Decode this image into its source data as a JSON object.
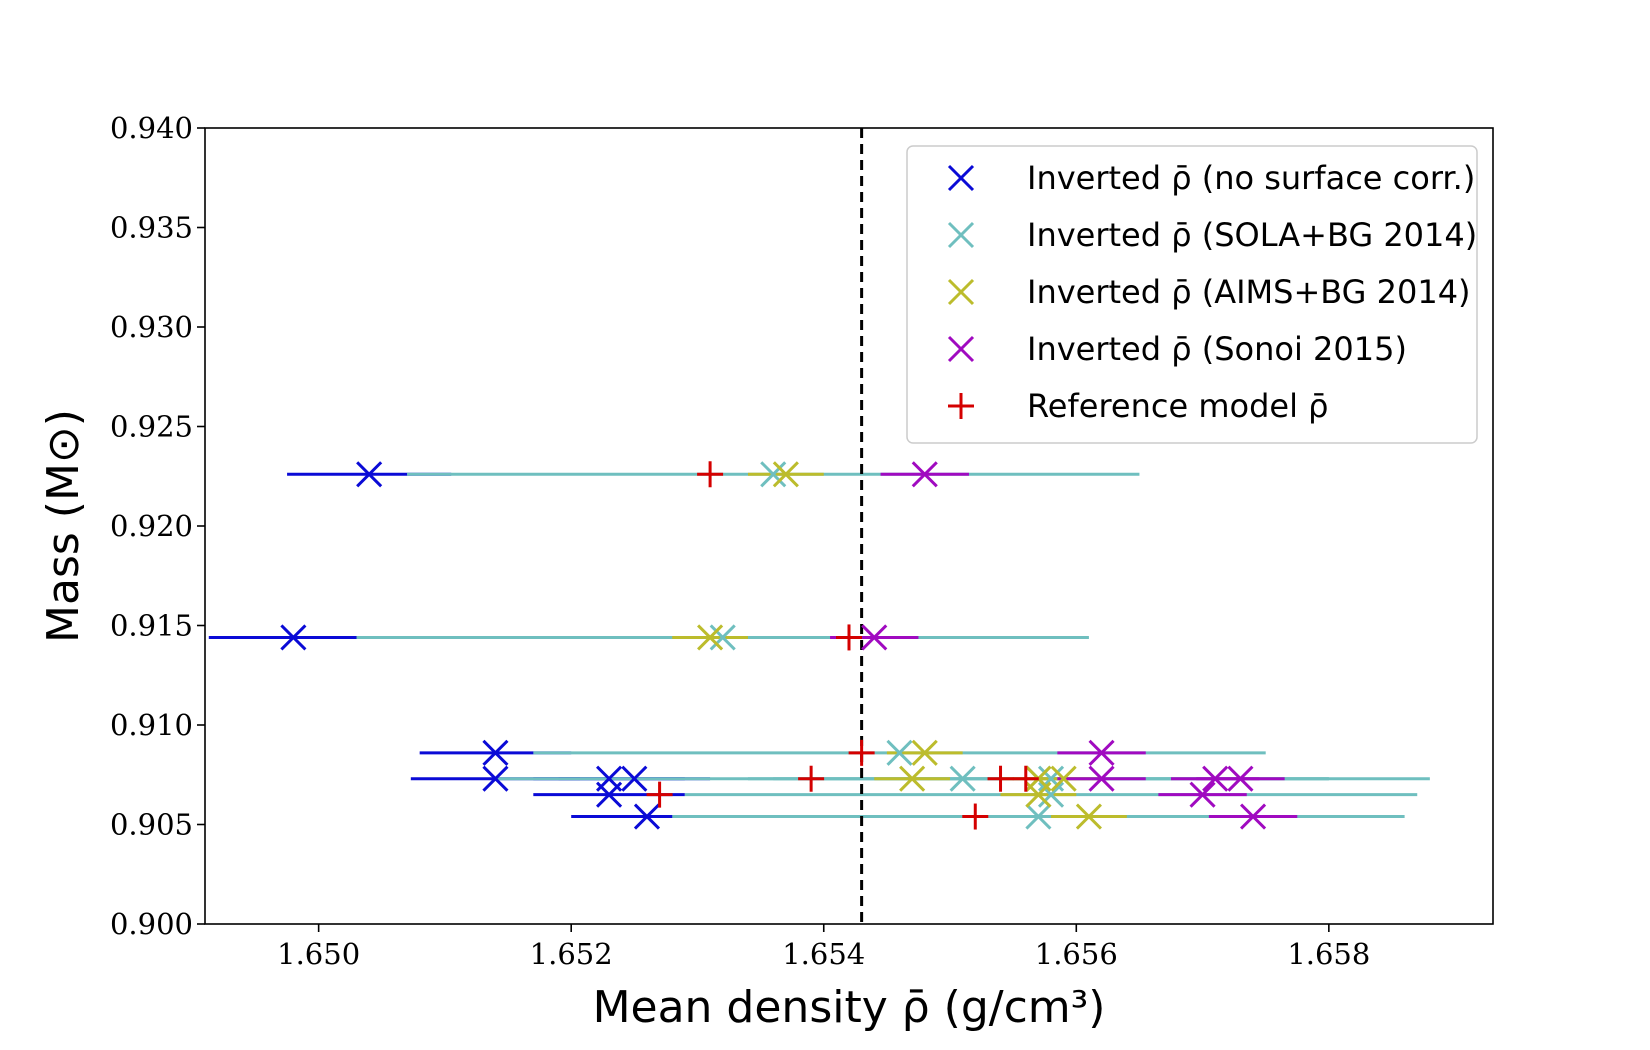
{
  "chart_data": {
    "type": "scatter",
    "xlabel": "Mean density ρ̄ (g/cm³)",
    "ylabel": "Mass (M⊙)",
    "xlim": [
      1.6491,
      1.6593
    ],
    "ylim": [
      0.9,
      0.94
    ],
    "xticks": [
      "1.650",
      "1.652",
      "1.654",
      "1.656",
      "1.658"
    ],
    "yticks": [
      "0.900",
      "0.905",
      "0.910",
      "0.915",
      "0.920",
      "0.925",
      "0.930",
      "0.935",
      "0.940"
    ],
    "grid": false,
    "legend_position": "top-right",
    "vline": {
      "x": 1.6543,
      "style": "dashed",
      "color": "#000000"
    },
    "series": [
      {
        "name": "Inverted ρ̄ (no surface corr.)",
        "marker": "x",
        "color": "#0a0ad6",
        "points": [
          {
            "x": 1.6504,
            "y": 0.9226,
            "xerr": 0.00065
          },
          {
            "x": 1.6498,
            "y": 0.9144,
            "xerr": 0.00067
          },
          {
            "x": 1.6514,
            "y": 0.9086,
            "xerr": 0.0006
          },
          {
            "x": 1.6514,
            "y": 0.9073,
            "xerr": 0.00067
          },
          {
            "x": 1.6523,
            "y": 0.9073,
            "xerr": 0.0006
          },
          {
            "x": 1.6525,
            "y": 0.9073,
            "xerr": 0.0006
          },
          {
            "x": 1.6523,
            "y": 0.9065,
            "xerr": 0.0006
          },
          {
            "x": 1.6526,
            "y": 0.9054,
            "xerr": 0.0006
          }
        ]
      },
      {
        "name": "Inverted ρ̄ (SOLA+BG 2014)",
        "marker": "x",
        "color": "#6fbfbf",
        "points": [
          {
            "x": 1.6536,
            "y": 0.9226,
            "xerr": 0.0029
          },
          {
            "x": 1.6532,
            "y": 0.9144,
            "xerr": 0.0029
          },
          {
            "x": 1.6546,
            "y": 0.9086,
            "xerr": 0.0029
          },
          {
            "x": 1.6551,
            "y": 0.9073,
            "xerr": 0.0037
          },
          {
            "x": 1.6557,
            "y": 0.9073,
            "xerr": 0.0023
          },
          {
            "x": 1.6558,
            "y": 0.9073,
            "xerr": 0.0022
          },
          {
            "x": 1.6558,
            "y": 0.9065,
            "xerr": 0.0029
          },
          {
            "x": 1.6557,
            "y": 0.9054,
            "xerr": 0.0029
          }
        ]
      },
      {
        "name": "Inverted ρ̄ (AIMS+BG 2014)",
        "marker": "x",
        "color": "#bcbc2c",
        "points": [
          {
            "x": 1.6537,
            "y": 0.9226,
            "xerr": 0.0003
          },
          {
            "x": 1.6531,
            "y": 0.9144,
            "xerr": 0.0003
          },
          {
            "x": 1.6548,
            "y": 0.9086,
            "xerr": 0.0003
          },
          {
            "x": 1.6547,
            "y": 0.9073,
            "xerr": 0.0003
          },
          {
            "x": 1.6559,
            "y": 0.9073,
            "xerr": 0.0003
          },
          {
            "x": 1.6557,
            "y": 0.9073,
            "xerr": 0.0003
          },
          {
            "x": 1.6557,
            "y": 0.9065,
            "xerr": 0.0003
          },
          {
            "x": 1.6561,
            "y": 0.9054,
            "xerr": 0.0003
          }
        ]
      },
      {
        "name": "Inverted ρ̄ (Sonoi 2015)",
        "marker": "x",
        "color": "#a00ac0",
        "points": [
          {
            "x": 1.6548,
            "y": 0.9226,
            "xerr": 0.00035
          },
          {
            "x": 1.6544,
            "y": 0.9144,
            "xerr": 0.00035
          },
          {
            "x": 1.6562,
            "y": 0.9086,
            "xerr": 0.00035
          },
          {
            "x": 1.6562,
            "y": 0.9073,
            "xerr": 0.00035
          },
          {
            "x": 1.6571,
            "y": 0.9073,
            "xerr": 0.00035
          },
          {
            "x": 1.6573,
            "y": 0.9073,
            "xerr": 0.00035
          },
          {
            "x": 1.657,
            "y": 0.9065,
            "xerr": 0.00035
          },
          {
            "x": 1.6574,
            "y": 0.9054,
            "xerr": 0.00035
          }
        ]
      },
      {
        "name": "Reference model ρ̄",
        "marker": "+",
        "color": "#d40000",
        "points": [
          {
            "x": 1.6531,
            "y": 0.9226
          },
          {
            "x": 1.6542,
            "y": 0.9144
          },
          {
            "x": 1.6543,
            "y": 0.9086
          },
          {
            "x": 1.6539,
            "y": 0.9073
          },
          {
            "x": 1.6554,
            "y": 0.9073
          },
          {
            "x": 1.6556,
            "y": 0.9073
          },
          {
            "x": 1.6527,
            "y": 0.9065
          },
          {
            "x": 1.6552,
            "y": 0.9054
          }
        ]
      }
    ]
  }
}
